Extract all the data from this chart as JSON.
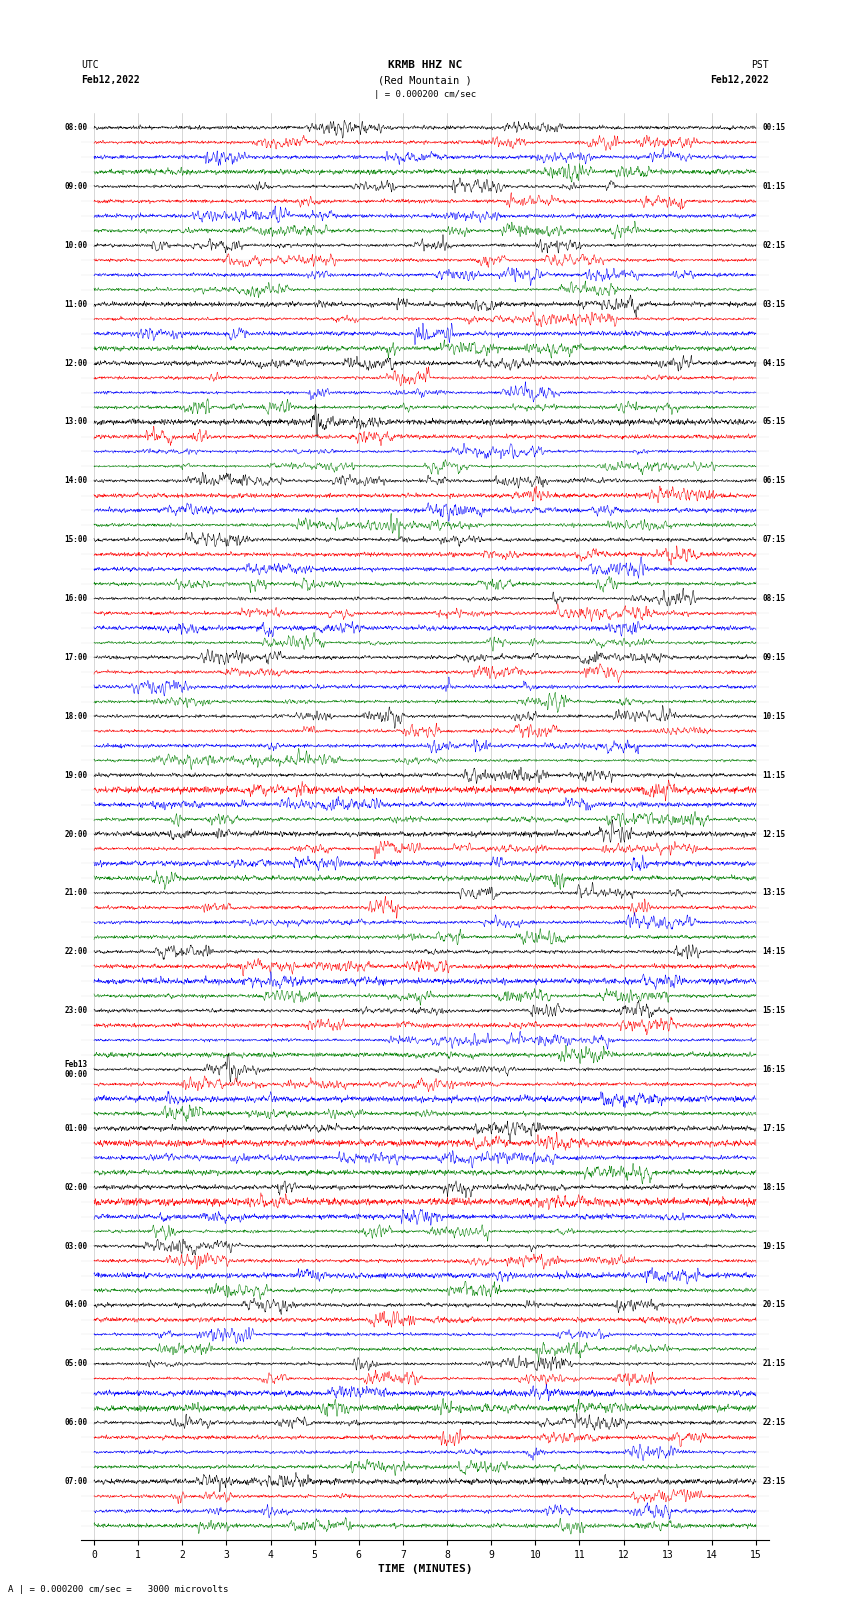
{
  "title_line1": "KRMB HHZ NC",
  "title_line2": "(Red Mountain )",
  "label_left": "UTC",
  "label_right": "PST",
  "date_left": "Feb12,2022",
  "date_right": "Feb12,2022",
  "scale_text": "| = 0.000200 cm/sec",
  "scale_bottom": "= 0.000200 cm/sec =   3000 microvolts",
  "xlabel": "TIME (MINUTES)",
  "xticks": [
    0,
    1,
    2,
    3,
    4,
    5,
    6,
    7,
    8,
    9,
    10,
    11,
    12,
    13,
    14,
    15
  ],
  "fig_width": 8.5,
  "fig_height": 16.13,
  "dpi": 100,
  "background_color": "#ffffff",
  "trace_colors": [
    "black",
    "red",
    "blue",
    "green"
  ],
  "utc_times": [
    "08:00",
    "09:00",
    "10:00",
    "11:00",
    "12:00",
    "13:00",
    "14:00",
    "15:00",
    "16:00",
    "17:00",
    "18:00",
    "19:00",
    "20:00",
    "21:00",
    "22:00",
    "23:00",
    "Feb13\n00:00",
    "01:00",
    "02:00",
    "03:00",
    "04:00",
    "05:00",
    "06:00",
    "07:00"
  ],
  "pst_times": [
    "00:15",
    "01:15",
    "02:15",
    "03:15",
    "04:15",
    "05:15",
    "06:15",
    "07:15",
    "08:15",
    "09:15",
    "10:15",
    "11:15",
    "12:15",
    "13:15",
    "14:15",
    "15:15",
    "16:15",
    "17:15",
    "18:15",
    "19:15",
    "20:15",
    "21:15",
    "22:15",
    "23:15"
  ],
  "n_rows": 24,
  "n_traces_per_row": 4,
  "samples_per_trace": 3000,
  "seed": 42
}
